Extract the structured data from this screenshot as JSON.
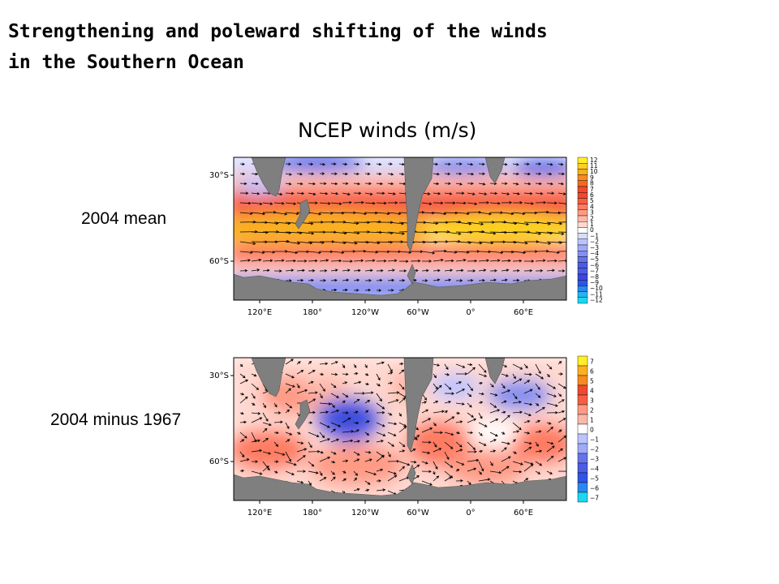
{
  "title": {
    "line1": "Strengthening and poleward shifting of the winds",
    "line2": "in the Southern Ocean"
  },
  "subtitle": "NCEP winds (m/s)",
  "colors": {
    "land": "#7f7f7f",
    "positive": [
      "#fff2f0",
      "#ffd8d0",
      "#ffb8a8",
      "#ff9a84",
      "#ff7c62",
      "#f75e44",
      "#ee4a30",
      "#f26a26",
      "#f78a20",
      "#fbb020",
      "#fdd020",
      "#ffee28"
    ],
    "negative": [
      "#f0f2ff",
      "#d8dcff",
      "#bcc4ff",
      "#a0aaf8",
      "#8490f0",
      "#6674ea",
      "#4c5ce4",
      "#3a48dc",
      "#2f54e6",
      "#2a88ee",
      "#22b6f0",
      "#1ad8f0"
    ]
  },
  "panels": [
    {
      "label": "2004 mean",
      "lat_labels": [
        "30°S",
        "60°S"
      ],
      "lon_labels": [
        "120°E",
        "180°",
        "120°W",
        "60°W",
        "0°",
        "60°E"
      ],
      "colorbar_labels": [
        "12",
        "11",
        "10",
        "9",
        "8",
        "7",
        "6",
        "5",
        "4",
        "3",
        "2",
        "1",
        "0",
        "−1",
        "−2",
        "−3",
        "−4",
        "−5",
        "−6",
        "−7",
        "−8",
        "−9",
        "−10",
        "−11",
        "−12"
      ]
    },
    {
      "label": "2004 minus 1967",
      "lat_labels": [
        "30°S",
        "60°S"
      ],
      "lon_labels": [
        "120°E",
        "180°",
        "120°W",
        "60°W",
        "0°",
        "60°E"
      ],
      "colorbar_labels": [
        "7",
        "6",
        "5",
        "4",
        "3",
        "2",
        "1",
        "0",
        "−1",
        "−2",
        "−3",
        "−4",
        "−5",
        "−6",
        "−7"
      ]
    }
  ]
}
